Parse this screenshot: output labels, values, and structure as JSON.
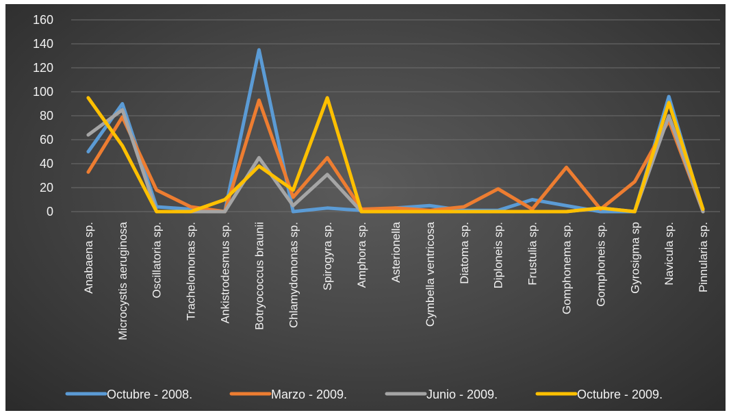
{
  "chart_data": {
    "type": "line",
    "title": "",
    "xlabel": "",
    "ylabel": "",
    "ylim": [
      0,
      160
    ],
    "yticks": [
      0,
      20,
      40,
      60,
      80,
      100,
      120,
      140,
      160
    ],
    "grid": true,
    "legend_position": "bottom",
    "categories": [
      "Anabaena sp.",
      "Microcystis aeruginosa",
      "Oscillatoria sp.",
      "Trachelomonas sp.",
      "Ankistrodesmus sp.",
      "Botryococcus braunii",
      "Chlamydomonas sp.",
      "Spirogyra sp.",
      "Amphora sp.",
      "Asterionella",
      "Cymbella ventricosa",
      "Diatoma sp.",
      "Diploneis sp.",
      "Frustulia sp.",
      "Gomphonema sp.",
      "Gomphoneis sp.",
      "Gyrosigma sp",
      "Navicula sp.",
      "Pinnularia sp."
    ],
    "series": [
      {
        "name": "Octubre - 2008.",
        "color": "#5b9bd5",
        "values": [
          50,
          90,
          4,
          2,
          0,
          135,
          0,
          3,
          1,
          3,
          5,
          1,
          1,
          10,
          5,
          0,
          0,
          96,
          0
        ]
      },
      {
        "name": "Marzo - 2009.",
        "color": "#ed7d31",
        "values": [
          33,
          79,
          18,
          4,
          0,
          93,
          12,
          45,
          2,
          3,
          1,
          4,
          19,
          2,
          37,
          2,
          25,
          76,
          0
        ]
      },
      {
        "name": "Junio - 2009.",
        "color": "#a5a5a5",
        "values": [
          64,
          85,
          0,
          0,
          0,
          45,
          5,
          31,
          0,
          0,
          0,
          0,
          0,
          0,
          0,
          3,
          0,
          80,
          0
        ]
      },
      {
        "name": "Octubre - 2009.",
        "color": "#ffc000",
        "values": [
          95,
          55,
          0,
          0,
          10,
          38,
          18,
          95,
          0,
          0,
          0,
          0,
          0,
          0,
          0,
          3,
          0,
          91,
          2
        ]
      }
    ]
  }
}
